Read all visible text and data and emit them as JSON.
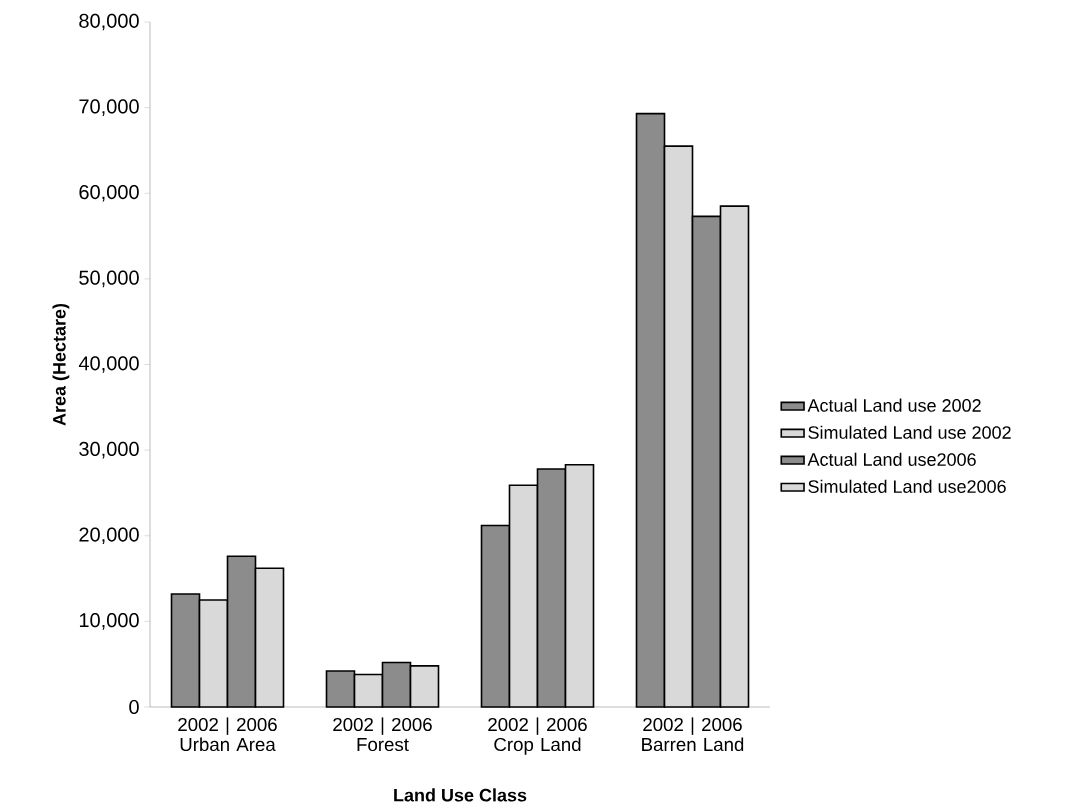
{
  "chart_data": {
    "type": "bar",
    "xlabel": "Land Use Class",
    "ylabel": "Area (Hectare)",
    "categories": [
      "2002 | 2006 Urban Area",
      "2002 | 2006 Forest",
      "2002 | 2006 Crop Land",
      "2002 | 2006 Barren Land"
    ],
    "series": [
      {
        "name": "Actual Land use 2002",
        "color": "#8c8c8c",
        "values": [
          13200,
          4200,
          21200,
          69300
        ]
      },
      {
        "name": "Simulated Land use 2002",
        "color": "#d9d9d9",
        "values": [
          12500,
          3800,
          25900,
          65500
        ]
      },
      {
        "name": "Actual Land use2006",
        "color": "#8c8c8c",
        "values": [
          17600,
          5200,
          27800,
          57300
        ]
      },
      {
        "name": "Simulated Land use2006",
        "color": "#d9d9d9",
        "values": [
          16200,
          4800,
          28300,
          58500
        ]
      }
    ],
    "ylim": [
      0,
      80000
    ],
    "yticks": [
      {
        "value": 0,
        "label": "0"
      },
      {
        "value": 10000,
        "label": "10,000"
      },
      {
        "value": 20000,
        "label": "20,000"
      },
      {
        "value": 30000,
        "label": "30,000"
      },
      {
        "value": 40000,
        "label": "40,000"
      },
      {
        "value": 50000,
        "label": "50,000"
      },
      {
        "value": 60000,
        "label": "60,000"
      },
      {
        "value": 70000,
        "label": "70,000"
      },
      {
        "value": 80000,
        "label": "80,000"
      }
    ],
    "grid": false,
    "legend": "right"
  }
}
